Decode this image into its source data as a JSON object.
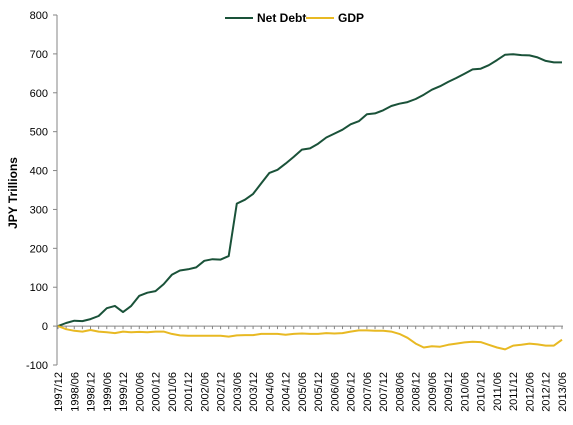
{
  "chart_data": {
    "type": "line",
    "ylabel": "JPY Trillions",
    "xlabel": "",
    "ylim": [
      -100,
      800
    ],
    "yticks": [
      -100,
      0,
      100,
      200,
      300,
      400,
      500,
      600,
      700,
      800
    ],
    "grid": false,
    "legend_position": "top-center",
    "x": [
      "1997/12",
      "1998/03",
      "1998/06",
      "1998/09",
      "1998/12",
      "1999/03",
      "1999/06",
      "1999/09",
      "1999/12",
      "2000/03",
      "2000/06",
      "2000/09",
      "2000/12",
      "2001/03",
      "2001/06",
      "2001/09",
      "2001/12",
      "2002/03",
      "2002/06",
      "2002/09",
      "2002/12",
      "2003/03",
      "2003/06",
      "2003/09",
      "2003/12",
      "2004/03",
      "2004/06",
      "2004/09",
      "2004/12",
      "2005/03",
      "2005/06",
      "2005/09",
      "2005/12",
      "2006/03",
      "2006/06",
      "2006/09",
      "2006/12",
      "2007/03",
      "2007/06",
      "2007/09",
      "2007/12",
      "2008/03",
      "2008/06",
      "2008/09",
      "2008/12",
      "2009/03",
      "2009/06",
      "2009/09",
      "2009/12",
      "2010/03",
      "2010/06",
      "2010/09",
      "2010/12",
      "2011/03",
      "2011/06",
      "2011/09",
      "2011/12",
      "2012/03",
      "2012/06",
      "2012/09",
      "2012/12",
      "2013/03",
      "2013/06"
    ],
    "xtick_labels": [
      "1997/12",
      "1998/06",
      "1998/12",
      "1999/06",
      "1999/12",
      "2000/06",
      "2000/12",
      "2001/06",
      "2001/12",
      "2002/06",
      "2002/12",
      "2003/06",
      "2003/12",
      "2004/06",
      "2004/12",
      "2005/06",
      "2005/12",
      "2006/06",
      "2006/12",
      "2007/06",
      "2007/12",
      "2008/06",
      "2008/12",
      "2009/06",
      "2009/12",
      "2010/06",
      "2010/12",
      "2011/06",
      "2011/12",
      "2012/06",
      "2012/12",
      "2013/06"
    ],
    "series": [
      {
        "name": "Net Debt",
        "color": "#1a5239",
        "values": [
          0,
          8,
          14,
          13,
          18,
          26,
          46,
          52,
          36,
          52,
          78,
          86,
          90,
          108,
          132,
          143,
          146,
          151,
          168,
          172,
          171,
          180,
          315,
          325,
          340,
          367,
          394,
          402,
          418,
          435,
          454,
          457,
          469,
          485,
          495,
          505,
          519,
          527,
          545,
          547,
          555,
          566,
          572,
          576,
          584,
          595,
          608,
          617,
          628,
          638,
          649,
          660,
          662,
          671,
          684,
          698,
          699,
          697,
          696,
          691,
          682,
          678,
          678
        ]
      },
      {
        "name": "GDP",
        "color": "#e8b923",
        "values": [
          0,
          -8,
          -12,
          -14,
          -10,
          -14,
          -16,
          -18,
          -14,
          -16,
          -15,
          -16,
          -14,
          -14,
          -20,
          -24,
          -25,
          -25,
          -25,
          -25,
          -25,
          -27,
          -24,
          -23,
          -23,
          -20,
          -20,
          -20,
          -22,
          -20,
          -19,
          -20,
          -20,
          -18,
          -19,
          -18,
          -14,
          -11,
          -11,
          -12,
          -12,
          -14,
          -20,
          -30,
          -45,
          -55,
          -52,
          -53,
          -48,
          -45,
          -42,
          -40,
          -41,
          -48,
          -55,
          -60,
          -50,
          -48,
          -45,
          -47,
          -50,
          -50,
          -35
        ]
      }
    ]
  }
}
